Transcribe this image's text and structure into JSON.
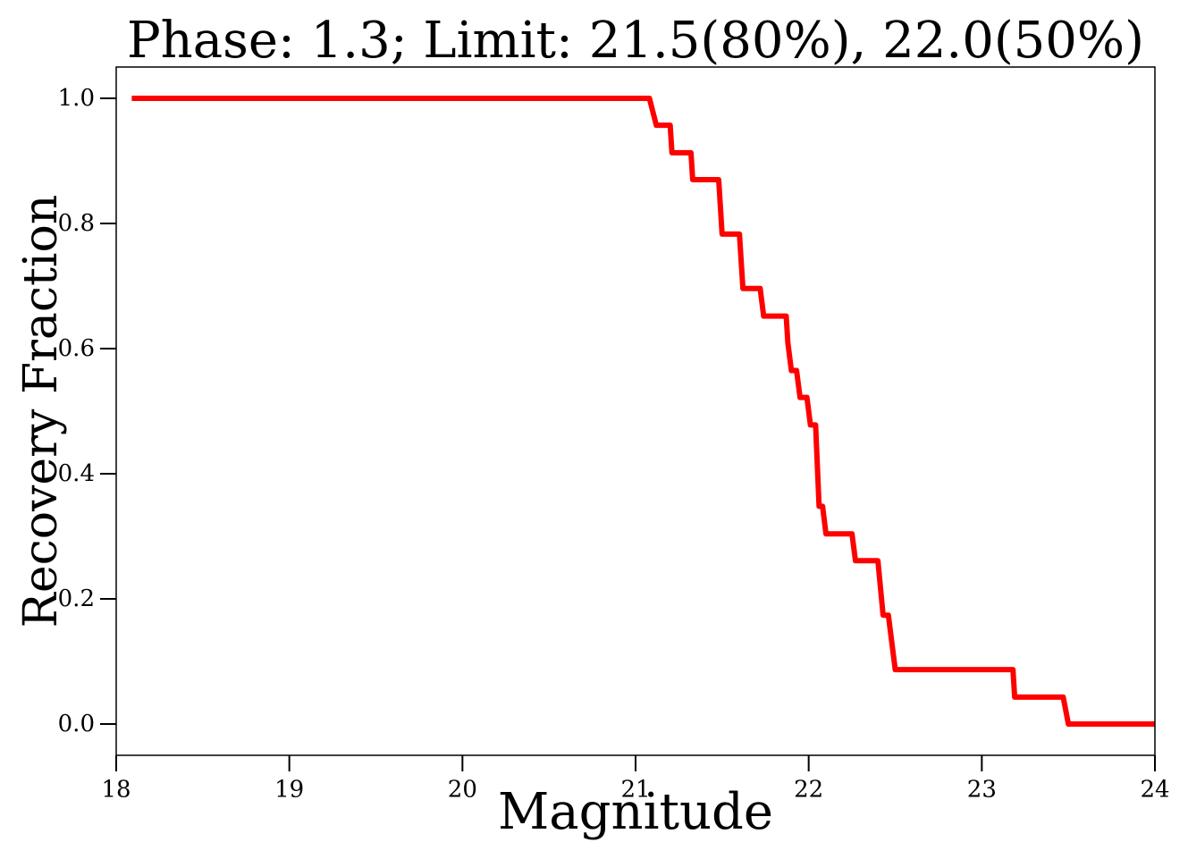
{
  "chart_data": {
    "type": "line",
    "title": "Phase: 1.3; Limit: 21.5(80%), 22.0(50%)",
    "xlabel": "Magnitude",
    "ylabel": "Recovery Fraction",
    "xlim": [
      18,
      24
    ],
    "ylim": [
      -0.05,
      1.05
    ],
    "xticks": [
      18,
      19,
      20,
      21,
      22,
      23,
      24
    ],
    "xtick_labels": [
      "18",
      "19",
      "20",
      "21",
      "22",
      "23",
      "24"
    ],
    "yticks": [
      0.0,
      0.2,
      0.4,
      0.6,
      0.8,
      1.0
    ],
    "ytick_labels": [
      "0.0",
      "0.2",
      "0.4",
      "0.6",
      "0.8",
      "1.0"
    ],
    "grid": false,
    "series": [
      {
        "color": "#ff0000",
        "x": [
          18.09,
          21.08,
          21.12,
          21.2,
          21.21,
          21.32,
          21.33,
          21.48,
          21.5,
          21.6,
          21.62,
          21.72,
          21.74,
          21.87,
          21.88,
          21.9,
          21.93,
          21.95,
          21.99,
          22.01,
          22.04,
          22.06,
          22.08,
          22.1,
          22.25,
          22.27,
          22.4,
          22.43,
          22.46,
          22.5,
          23.18,
          23.19,
          23.47,
          23.5,
          24.0
        ],
        "y": [
          1.0,
          1.0,
          0.957,
          0.957,
          0.913,
          0.913,
          0.87,
          0.87,
          0.783,
          0.783,
          0.696,
          0.696,
          0.652,
          0.652,
          0.609,
          0.565,
          0.565,
          0.522,
          0.522,
          0.478,
          0.478,
          0.348,
          0.348,
          0.304,
          0.304,
          0.261,
          0.261,
          0.174,
          0.174,
          0.087,
          0.087,
          0.043,
          0.043,
          0.0,
          0.0
        ]
      }
    ]
  }
}
